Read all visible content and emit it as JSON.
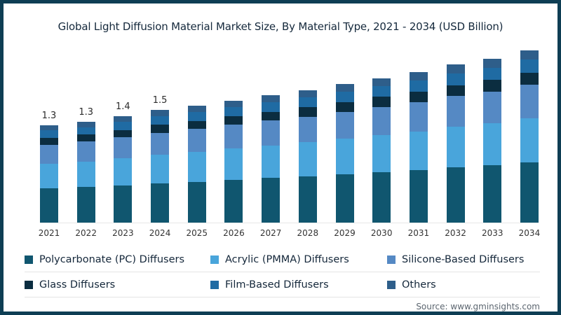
{
  "frame": {
    "border_color": "#0e3e54",
    "background_color": "#ffffff"
  },
  "title": "Global Light Diffusion Material Market Size, By Material Type, 2021 - 2034 (USD Billion)",
  "source": "Source: www.gminsights.com",
  "chart_data": {
    "type": "bar",
    "stacked": true,
    "title": "Global Light Diffusion Material Market Size, By Material Type, 2021 - 2034 (USD Billion)",
    "unit": "USD Billion",
    "xlabel": "",
    "ylabel": "",
    "ylim": [
      0,
      2.5
    ],
    "grid": false,
    "legend_position": "bottom",
    "categories": [
      "2021",
      "2022",
      "2023",
      "2024",
      "2025",
      "2026",
      "2027",
      "2028",
      "2029",
      "2030",
      "2031",
      "2032",
      "2033",
      "2034"
    ],
    "bar_value_labels": [
      "1.3",
      "1.3",
      "1.4",
      "1.5",
      "",
      "",
      "",
      "",
      "",
      "",
      "",
      "",
      "",
      ""
    ],
    "totals": [
      1.3,
      1.35,
      1.42,
      1.5,
      1.56,
      1.63,
      1.7,
      1.77,
      1.85,
      1.93,
      2.01,
      2.11,
      2.19,
      2.3
    ],
    "series": [
      {
        "name": "Polycarbonate (PC) Diffusers",
        "color": "#10566f",
        "values": [
          0.455,
          0.473,
          0.497,
          0.525,
          0.546,
          0.571,
          0.595,
          0.62,
          0.648,
          0.676,
          0.704,
          0.739,
          0.767,
          0.805
        ]
      },
      {
        "name": "Acrylic (PMMA) Diffusers",
        "color": "#49a5db",
        "values": [
          0.332,
          0.344,
          0.362,
          0.383,
          0.398,
          0.416,
          0.434,
          0.451,
          0.472,
          0.492,
          0.513,
          0.538,
          0.558,
          0.587
        ]
      },
      {
        "name": "Silicone-Based Diffusers",
        "color": "#5589c4",
        "values": [
          0.254,
          0.263,
          0.277,
          0.293,
          0.304,
          0.318,
          0.332,
          0.345,
          0.361,
          0.376,
          0.392,
          0.411,
          0.427,
          0.449
        ]
      },
      {
        "name": "Glass Diffusers",
        "color": "#0b2d40",
        "values": [
          0.091,
          0.095,
          0.099,
          0.105,
          0.109,
          0.114,
          0.119,
          0.124,
          0.13,
          0.135,
          0.141,
          0.148,
          0.153,
          0.161
        ]
      },
      {
        "name": "Film-Based Diffusers",
        "color": "#1f6ba3",
        "values": [
          0.098,
          0.101,
          0.107,
          0.113,
          0.117,
          0.122,
          0.128,
          0.133,
          0.139,
          0.145,
          0.151,
          0.158,
          0.164,
          0.173
        ]
      },
      {
        "name": "Others",
        "color": "#2e5e8a",
        "values": [
          0.072,
          0.074,
          0.078,
          0.083,
          0.086,
          0.09,
          0.094,
          0.097,
          0.102,
          0.106,
          0.111,
          0.116,
          0.12,
          0.127
        ]
      }
    ]
  }
}
